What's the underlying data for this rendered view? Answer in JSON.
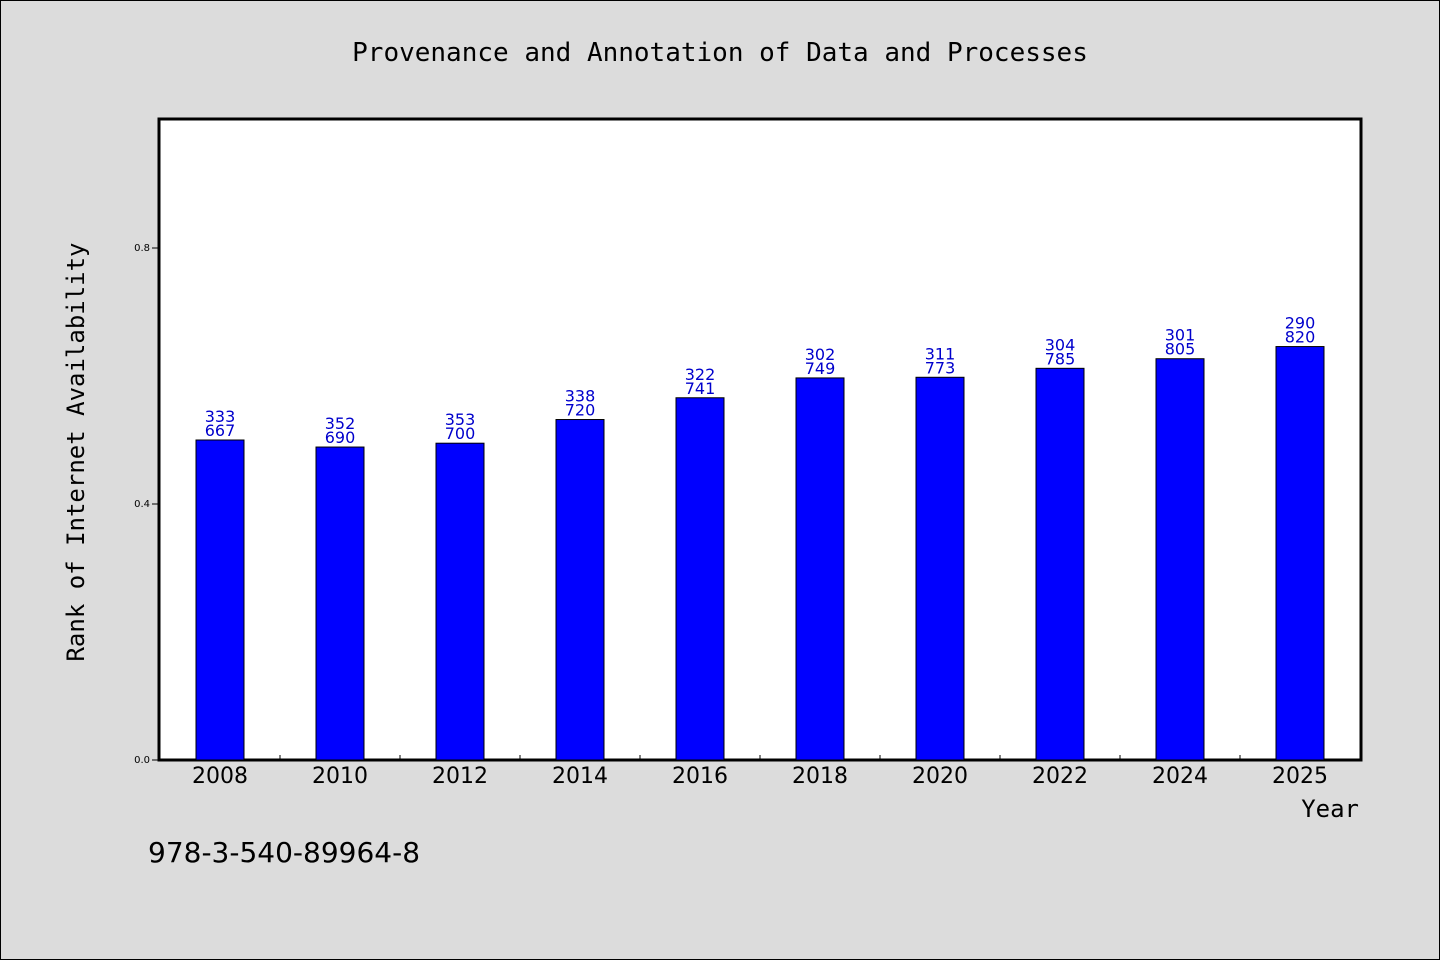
{
  "chart_data": {
    "type": "bar",
    "title": "Provenance and Annotation of Data and Processes",
    "xlabel": "Year",
    "ylabel": "Rank of Internet Availability",
    "categories": [
      "2008",
      "2010",
      "2012",
      "2014",
      "2016",
      "2018",
      "2020",
      "2022",
      "2024",
      "2025"
    ],
    "values": [
      0.5,
      0.489,
      0.495,
      0.532,
      0.566,
      0.597,
      0.598,
      0.612,
      0.627,
      0.646
    ],
    "data_labels": [
      [
        "333",
        "667"
      ],
      [
        "352",
        "690"
      ],
      [
        "353",
        "700"
      ],
      [
        "338",
        "720"
      ],
      [
        "322",
        "741"
      ],
      [
        "302",
        "749"
      ],
      [
        "311",
        "773"
      ],
      [
        "304",
        "785"
      ],
      [
        "301",
        "805"
      ],
      [
        "290",
        "820"
      ]
    ],
    "yticks": [
      "0.0",
      "0.4",
      "0.8"
    ],
    "ylim": [
      0,
      1.0
    ],
    "grid": false,
    "legend": "none",
    "footnote": "978-3-540-89964-8",
    "colors": {
      "bar": "#0000ff",
      "label": "#0000cc",
      "background": "#dcdcdc",
      "plot_bg": "#ffffff"
    }
  }
}
